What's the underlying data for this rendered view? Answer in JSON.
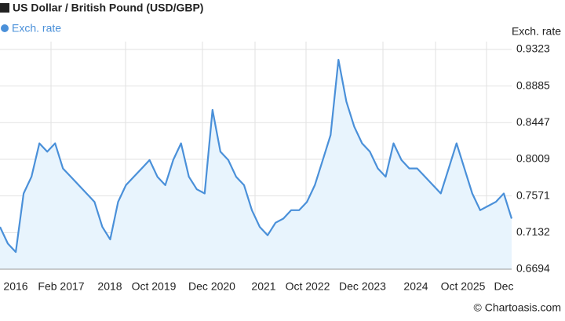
{
  "chart_data": {
    "type": "line",
    "title": "US Dollar / British Pound (USD/GBP)",
    "y_axis_title": "Exch. rate",
    "credit": "© Chartoasis.com",
    "x_tick_labels": [
      "2016",
      "Feb 2017",
      "2018",
      "Oct 2019",
      "Dec 2020",
      "2021",
      "Oct 2022",
      "Dec 2023",
      "2024",
      "Oct 2025",
      "Dec"
    ],
    "series": [
      {
        "name": "Exch. rate",
        "color": "#4a90d9",
        "fill": "#e8f4fd",
        "values": [
          0.72,
          0.7,
          0.69,
          0.76,
          0.78,
          0.82,
          0.81,
          0.82,
          0.79,
          0.78,
          0.77,
          0.76,
          0.75,
          0.72,
          0.705,
          0.75,
          0.77,
          0.78,
          0.79,
          0.8,
          0.78,
          0.77,
          0.8,
          0.82,
          0.78,
          0.765,
          0.76,
          0.86,
          0.81,
          0.8,
          0.78,
          0.77,
          0.74,
          0.72,
          0.71,
          0.725,
          0.73,
          0.74,
          0.74,
          0.75,
          0.77,
          0.8,
          0.83,
          0.92,
          0.87,
          0.84,
          0.82,
          0.81,
          0.79,
          0.78,
          0.82,
          0.8,
          0.79,
          0.79,
          0.78,
          0.77,
          0.76,
          0.79,
          0.82,
          0.79,
          0.76,
          0.74,
          0.745,
          0.75,
          0.76,
          0.73
        ]
      }
    ],
    "ylim": [
      0.6694,
      0.9323
    ],
    "yticks": [
      0.6694,
      0.7132,
      0.7571,
      0.8009,
      0.8447,
      0.8885,
      0.9323
    ],
    "grid": true
  }
}
